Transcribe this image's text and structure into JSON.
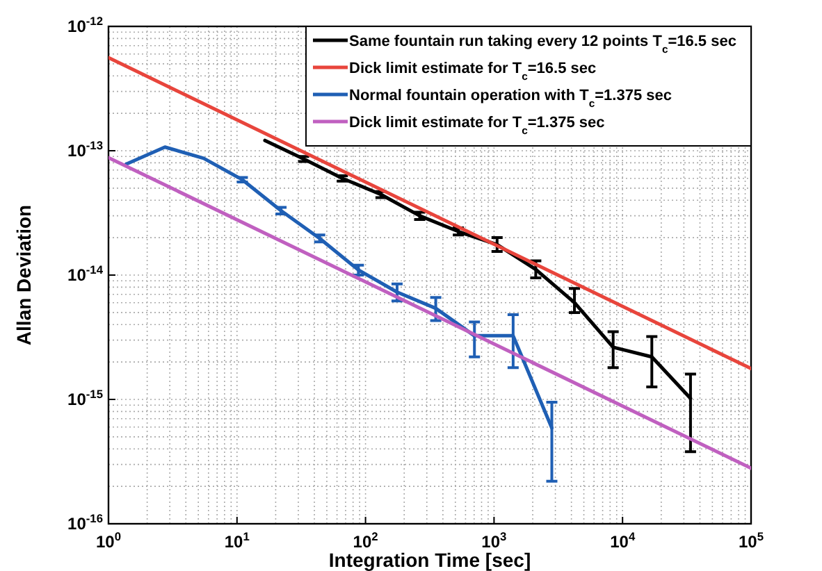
{
  "chart_data": {
    "type": "line",
    "xlabel": "Integration Time [sec]",
    "ylabel": "Allan Deviation",
    "log": "xy",
    "grid": true,
    "legend": "top right",
    "marker": "none",
    "line_style": "solid",
    "xlim": [
      1,
      100000
    ],
    "ylim": [
      1e-16,
      1e-12
    ],
    "xticks": [
      {
        "value": 1,
        "label": "10$^{0}$"
      },
      {
        "value": 10,
        "label": "10$^{1}$"
      },
      {
        "value": 100,
        "label": "10$^{2}$"
      },
      {
        "value": 1000,
        "label": "10$^{3}$"
      },
      {
        "value": 10000,
        "label": "10$^{4}$"
      },
      {
        "value": 100000,
        "label": "10$^{5}$"
      }
    ],
    "yticks": [
      {
        "value": 1e-16,
        "label": "10$^{-16}$"
      },
      {
        "value": 1e-15,
        "label": "10$^{-15}$"
      },
      {
        "value": 1e-14,
        "label": "10$^{-14}$"
      },
      {
        "value": 1e-13,
        "label": "10$^{-13}$"
      },
      {
        "value": 1e-12,
        "label": "10$^{-12}$"
      }
    ],
    "series": [
      {
        "name": "Same fountain run taking every 12 points T$_{c}$=16.5 sec",
        "color": "#000000",
        "x": [
          16.5,
          33,
          66,
          132,
          264,
          528,
          1056,
          2112,
          4224,
          8448,
          16896,
          33792
        ],
        "values": [
          1.21e-13,
          8.6e-14,
          6e-14,
          4.45e-14,
          3e-14,
          2.24e-14,
          1.76e-14,
          1.11e-14,
          6e-15,
          2.63e-15,
          2.2e-15,
          1.02e-15
        ],
        "errors": [
          null,
          [
            8.2e-14,
            9e-14
          ],
          [
            5.7e-14,
            6.3e-14
          ],
          [
            4.2e-14,
            4.7e-14
          ],
          [
            2.8e-14,
            3.2e-14
          ],
          [
            2.1e-14,
            2.4e-14
          ],
          [
            1.55e-14,
            2e-14
          ],
          [
            9.5e-15,
            1.3e-14
          ],
          [
            5e-15,
            7.8e-15
          ],
          [
            1.8e-15,
            3.5e-15
          ],
          [
            1.26e-15,
            3.2e-15
          ],
          [
            3.8e-16,
            1.6e-15
          ]
        ]
      },
      {
        "name": "Dick limit estimate for T$_{c}$=16.5 sec",
        "color": "#e8453c",
        "x": [
          1,
          100000
        ],
        "values": [
          5.6e-13,
          1.77e-15
        ]
      },
      {
        "name": "Normal fountain operation with T$_{c}$=1.375 sec",
        "color": "#1f5fb4",
        "x": [
          1.375,
          2.75,
          5.5,
          11,
          22,
          44,
          88,
          176,
          352,
          704,
          1408,
          2816
        ],
        "values": [
          7.8e-14,
          1.07e-13,
          8.7e-14,
          5.85e-14,
          3.3e-14,
          1.97e-14,
          1.1e-14,
          7.3e-15,
          5.4e-15,
          3.25e-15,
          3.25e-15,
          5.9e-16
        ],
        "errors": [
          null,
          null,
          null,
          [
            5.6e-14,
            6.1e-14
          ],
          [
            3.1e-14,
            3.5e-14
          ],
          [
            1.85e-14,
            2.1e-14
          ],
          [
            1e-14,
            1.2e-14
          ],
          [
            6.2e-15,
            8.5e-15
          ],
          [
            4.3e-15,
            6.6e-15
          ],
          [
            2.2e-15,
            4.2e-15
          ],
          [
            1.8e-15,
            4.8e-15
          ],
          [
            2.2e-16,
            9.5e-16
          ]
        ]
      },
      {
        "name": "Dick limit estimate for T$_{c}$=1.375 sec",
        "color": "#c060c0",
        "x": [
          1,
          100000
        ],
        "values": [
          8.8e-14,
          2.8e-16
        ]
      }
    ]
  }
}
